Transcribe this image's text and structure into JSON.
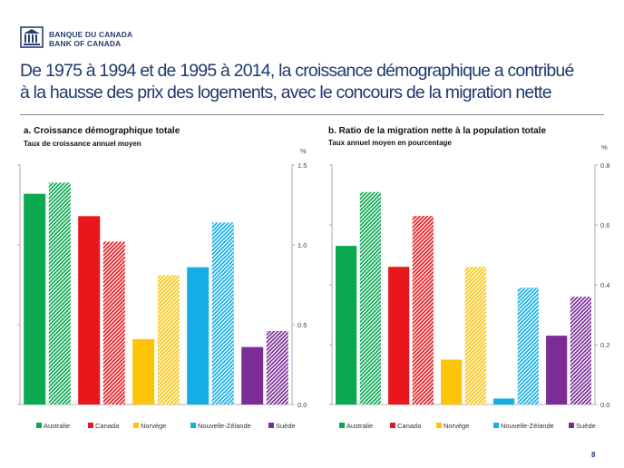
{
  "header": {
    "logo_line1": "BANQUE DU CANADA",
    "logo_line2": "BANK OF CANADA",
    "title_line1": "De 1975 à 1994 et de 1995 à 2014, la croissance démographique a contribué",
    "title_line2": "à la hausse des prix des logements, avec le concours de la migration nette"
  },
  "page_number": "8",
  "legend": [
    {
      "name": "Australie",
      "color": "#0aa84f"
    },
    {
      "name": "Canada",
      "color": "#e8171c"
    },
    {
      "name": "Norvège",
      "color": "#fdc40a"
    },
    {
      "name": "Nouvelle-Zélande",
      "color": "#16aee6"
    },
    {
      "name": "Suède",
      "color": "#7a2d96"
    }
  ],
  "chart_data": [
    {
      "type": "bar",
      "title": "a. Croissance démographique totale",
      "subtitle": "Taux de croissance annuel moyen",
      "unit": "%",
      "categories": [
        "Australie",
        "Canada",
        "Norvège",
        "Nouvelle-Zélande",
        "Suède"
      ],
      "series": [
        {
          "name": "",
          "values": [
            1.32,
            1.18,
            0.41,
            0.86,
            0.36
          ]
        },
        {
          "name": "",
          "values": [
            1.39,
            1.02,
            0.81,
            1.14,
            0.46
          ]
        }
      ],
      "ylim": [
        0,
        1.5
      ],
      "yticks": [
        "0.0",
        "0.5",
        "1.0",
        "1.5"
      ],
      "axis_side": "right",
      "legend_position": "bottom"
    },
    {
      "type": "bar",
      "title": "b. Ratio de la migration nette à la population totale",
      "subtitle": "Taux annuel moyen en pourcentage",
      "unit": "%",
      "categories": [
        "Australie",
        "Canada",
        "Norvège",
        "Nouvelle-Zélande",
        "Suède"
      ],
      "series": [
        {
          "name": "",
          "values": [
            0.53,
            0.46,
            0.15,
            0.02,
            0.23
          ]
        },
        {
          "name": "",
          "values": [
            0.71,
            0.63,
            0.46,
            0.39,
            0.36
          ]
        }
      ],
      "ylim": [
        0,
        0.8
      ],
      "yticks": [
        "0.0",
        "0.2",
        "0.4",
        "0.6",
        "0.8"
      ],
      "axis_side": "right",
      "legend_position": "bottom"
    }
  ]
}
